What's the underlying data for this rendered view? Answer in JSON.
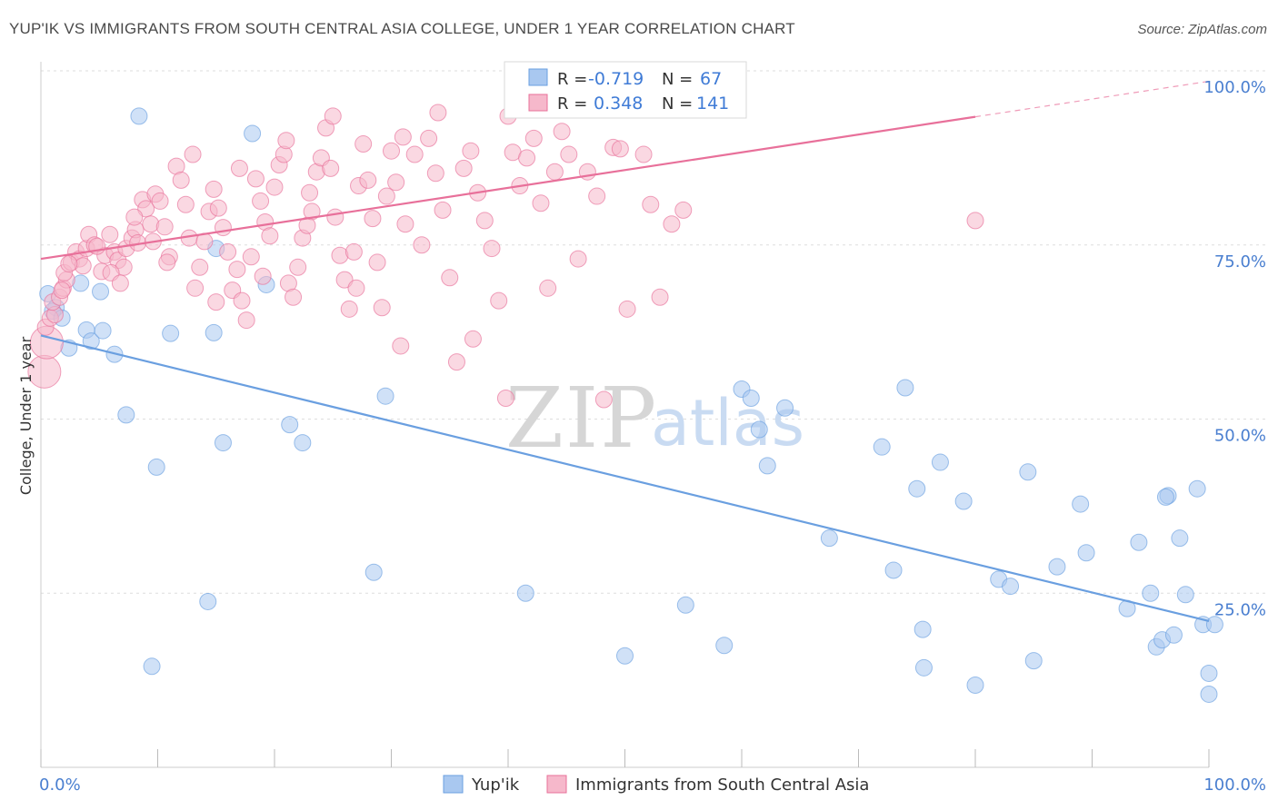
{
  "title": "YUP'IK VS IMMIGRANTS FROM SOUTH CENTRAL ASIA COLLEGE, UNDER 1 YEAR CORRELATION CHART",
  "source": "Source: ZipAtlas.com",
  "watermark": {
    "zip": "ZIP",
    "atlas": "atlas"
  },
  "legend": {
    "rows": [
      {
        "r_label": "R =",
        "r_value": "-0.719",
        "n_label": "N =",
        "n_value": "67",
        "color": "#a9c8f0"
      },
      {
        "r_label": "R =",
        "r_value": "0.348",
        "n_label": "N =",
        "n_value": "141",
        "color": "#f6b8cb"
      }
    ]
  },
  "bottom_legend": [
    {
      "label": "Yup'ik",
      "color": "#a9c8f0"
    },
    {
      "label": "Immigrants from South Central Asia",
      "color": "#f6b8cb"
    }
  ],
  "chart_data": {
    "type": "scatter",
    "title": "YUP'IK VS IMMIGRANTS FROM SOUTH CENTRAL ASIA COLLEGE, UNDER 1 YEAR CORRELATION CHART",
    "xlabel": "",
    "ylabel": "College, Under 1 year",
    "xlim": [
      0,
      100
    ],
    "ylim": [
      0,
      100
    ],
    "x_tick_labels": [
      "0.0%",
      "100.0%"
    ],
    "y_tick_labels": [
      "100.0%",
      "75.0%",
      "50.0%",
      "25.0%"
    ],
    "y_ticks": [
      100,
      75,
      50,
      25
    ],
    "grid": true,
    "legend_position": "top-center",
    "series": [
      {
        "name": "Yup'ik",
        "color": "#6a9fe0",
        "fill": "#a9c8f0",
        "trend": {
          "x": [
            0,
            100
          ],
          "y": [
            62,
            21
          ],
          "dashed_from": null
        },
        "points": [
          [
            8.4,
            93.5
          ],
          [
            18.1,
            91.0
          ],
          [
            0.6,
            68.0
          ],
          [
            1.3,
            66.0
          ],
          [
            1.0,
            65.5
          ],
          [
            1.8,
            64.5
          ],
          [
            3.4,
            69.5
          ],
          [
            5.1,
            68.3
          ],
          [
            2.4,
            60.2
          ],
          [
            3.9,
            62.8
          ],
          [
            4.3,
            61.2
          ],
          [
            5.3,
            62.7
          ],
          [
            6.3,
            59.3
          ],
          [
            11.1,
            62.3
          ],
          [
            15.0,
            74.5
          ],
          [
            19.3,
            69.3
          ],
          [
            7.3,
            50.6
          ],
          [
            14.8,
            62.4
          ],
          [
            9.9,
            43.1
          ],
          [
            15.6,
            46.6
          ],
          [
            21.3,
            49.2
          ],
          [
            22.4,
            46.6
          ],
          [
            29.5,
            53.3
          ],
          [
            9.5,
            14.5
          ],
          [
            14.3,
            23.8
          ],
          [
            28.5,
            28.0
          ],
          [
            41.5,
            25.0
          ],
          [
            50.0,
            16.0
          ],
          [
            55.2,
            23.3
          ],
          [
            58.5,
            17.5
          ],
          [
            60.0,
            54.3
          ],
          [
            60.8,
            53.0
          ],
          [
            61.5,
            48.5
          ],
          [
            62.2,
            43.3
          ],
          [
            63.7,
            51.6
          ],
          [
            67.5,
            32.9
          ],
          [
            72.0,
            46.0
          ],
          [
            73.0,
            28.3
          ],
          [
            74.0,
            54.5
          ],
          [
            75.0,
            40.0
          ],
          [
            75.5,
            19.8
          ],
          [
            75.6,
            14.3
          ],
          [
            77.0,
            43.8
          ],
          [
            79.0,
            38.2
          ],
          [
            80.0,
            11.8
          ],
          [
            82.0,
            27.0
          ],
          [
            83.0,
            26.0
          ],
          [
            84.5,
            42.4
          ],
          [
            85.0,
            15.3
          ],
          [
            87.0,
            28.8
          ],
          [
            89.0,
            37.8
          ],
          [
            89.5,
            30.8
          ],
          [
            93.0,
            22.8
          ],
          [
            94.0,
            32.3
          ],
          [
            95.0,
            25.0
          ],
          [
            95.5,
            17.3
          ],
          [
            96.0,
            18.3
          ],
          [
            96.5,
            39.0
          ],
          [
            97.0,
            19.0
          ],
          [
            97.5,
            32.9
          ],
          [
            98.0,
            24.8
          ],
          [
            99.0,
            40.0
          ],
          [
            99.5,
            20.5
          ],
          [
            100.0,
            13.5
          ],
          [
            100.5,
            20.5
          ],
          [
            100.0,
            10.5
          ],
          [
            96.3,
            38.8
          ]
        ]
      },
      {
        "name": "Immigrants from South Central Asia",
        "color": "#e8709a",
        "fill": "#f6b8cb",
        "trend": {
          "x": [
            0,
            100
          ],
          "y": [
            73,
            98.5
          ],
          "dashed_from": 80
        },
        "points": [
          [
            0.3,
            56.8
          ],
          [
            0.5,
            61.0
          ],
          [
            0.4,
            63.2
          ],
          [
            0.8,
            64.5
          ],
          [
            1.2,
            65.0
          ],
          [
            1.0,
            66.8
          ],
          [
            1.6,
            67.5
          ],
          [
            1.9,
            68.8
          ],
          [
            2.2,
            70.0
          ],
          [
            2.0,
            71.0
          ],
          [
            2.6,
            72.5
          ],
          [
            3.0,
            74.0
          ],
          [
            3.3,
            73.0
          ],
          [
            3.6,
            72.0
          ],
          [
            3.9,
            74.5
          ],
          [
            4.1,
            76.5
          ],
          [
            4.6,
            75.0
          ],
          [
            5.2,
            71.2
          ],
          [
            5.5,
            73.5
          ],
          [
            5.9,
            76.5
          ],
          [
            6.3,
            74.0
          ],
          [
            6.6,
            72.8
          ],
          [
            7.1,
            71.8
          ],
          [
            7.3,
            74.5
          ],
          [
            7.8,
            76.0
          ],
          [
            8.1,
            77.2
          ],
          [
            8.3,
            75.3
          ],
          [
            8.7,
            81.5
          ],
          [
            9.0,
            80.2
          ],
          [
            9.4,
            78.0
          ],
          [
            9.8,
            82.3
          ],
          [
            10.2,
            81.3
          ],
          [
            10.6,
            77.6
          ],
          [
            11.0,
            73.3
          ],
          [
            11.6,
            86.3
          ],
          [
            12.0,
            84.3
          ],
          [
            12.4,
            80.8
          ],
          [
            12.7,
            76.0
          ],
          [
            13.2,
            68.8
          ],
          [
            13.6,
            71.8
          ],
          [
            14.0,
            75.5
          ],
          [
            14.4,
            79.8
          ],
          [
            14.8,
            83.0
          ],
          [
            15.2,
            80.3
          ],
          [
            15.6,
            77.5
          ],
          [
            16.0,
            74.0
          ],
          [
            16.4,
            68.5
          ],
          [
            16.8,
            71.5
          ],
          [
            17.2,
            67.0
          ],
          [
            17.6,
            64.2
          ],
          [
            18.0,
            73.3
          ],
          [
            18.4,
            84.5
          ],
          [
            18.8,
            81.3
          ],
          [
            19.2,
            78.3
          ],
          [
            19.6,
            76.3
          ],
          [
            20.0,
            83.3
          ],
          [
            20.4,
            86.5
          ],
          [
            20.8,
            88.0
          ],
          [
            21.2,
            69.5
          ],
          [
            21.6,
            67.5
          ],
          [
            22.0,
            71.8
          ],
          [
            22.4,
            76.0
          ],
          [
            22.8,
            77.8
          ],
          [
            23.2,
            79.8
          ],
          [
            23.6,
            85.5
          ],
          [
            24.0,
            87.5
          ],
          [
            24.4,
            91.8
          ],
          [
            24.8,
            86.0
          ],
          [
            25.2,
            79.0
          ],
          [
            25.6,
            73.5
          ],
          [
            26.0,
            70.0
          ],
          [
            26.4,
            65.8
          ],
          [
            26.8,
            74.0
          ],
          [
            27.2,
            83.5
          ],
          [
            27.6,
            89.5
          ],
          [
            28.0,
            84.3
          ],
          [
            28.4,
            78.8
          ],
          [
            28.8,
            72.5
          ],
          [
            29.2,
            66.0
          ],
          [
            29.6,
            82.0
          ],
          [
            30.0,
            88.5
          ],
          [
            30.4,
            84.0
          ],
          [
            30.8,
            60.5
          ],
          [
            31.2,
            78.0
          ],
          [
            32.0,
            88.0
          ],
          [
            32.6,
            75.0
          ],
          [
            33.2,
            90.3
          ],
          [
            33.8,
            85.3
          ],
          [
            34.4,
            80.0
          ],
          [
            35.0,
            70.3
          ],
          [
            35.6,
            58.2
          ],
          [
            36.2,
            86.0
          ],
          [
            36.8,
            88.5
          ],
          [
            37.4,
            82.5
          ],
          [
            38.0,
            78.5
          ],
          [
            38.6,
            74.5
          ],
          [
            39.2,
            67.0
          ],
          [
            39.8,
            53.0
          ],
          [
            40.4,
            88.3
          ],
          [
            41.0,
            83.5
          ],
          [
            41.6,
            87.5
          ],
          [
            42.2,
            90.3
          ],
          [
            42.8,
            81.0
          ],
          [
            43.4,
            68.8
          ],
          [
            44.0,
            85.5
          ],
          [
            44.6,
            91.3
          ],
          [
            45.2,
            88.0
          ],
          [
            46.0,
            73.0
          ],
          [
            46.8,
            85.5
          ],
          [
            47.6,
            82.0
          ],
          [
            48.2,
            52.8
          ],
          [
            49.0,
            89.0
          ],
          [
            49.6,
            88.8
          ],
          [
            50.2,
            65.8
          ],
          [
            50.8,
            95.3
          ],
          [
            51.6,
            88.0
          ],
          [
            52.2,
            80.8
          ],
          [
            53.0,
            67.5
          ],
          [
            54.0,
            78.0
          ],
          [
            55.0,
            80.0
          ],
          [
            1.8,
            68.5
          ],
          [
            2.4,
            72.3
          ],
          [
            4.8,
            74.8
          ],
          [
            6.0,
            71.0
          ],
          [
            6.8,
            69.5
          ],
          [
            8.0,
            79.0
          ],
          [
            9.6,
            75.5
          ],
          [
            10.8,
            72.5
          ],
          [
            13.0,
            88.0
          ],
          [
            15.0,
            66.8
          ],
          [
            17.0,
            86.0
          ],
          [
            19.0,
            70.5
          ],
          [
            21.0,
            90.0
          ],
          [
            23.0,
            82.5
          ],
          [
            25.0,
            93.5
          ],
          [
            27.0,
            68.8
          ],
          [
            31.0,
            90.5
          ],
          [
            34.0,
            94.0
          ],
          [
            37.0,
            61.5
          ],
          [
            40.0,
            93.5
          ],
          [
            80.0,
            78.5
          ]
        ]
      }
    ]
  }
}
